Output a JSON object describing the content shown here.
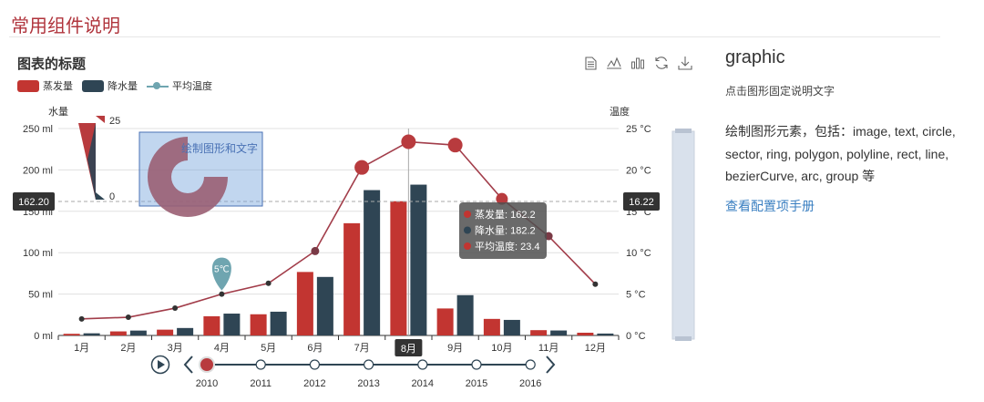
{
  "page": {
    "title": "常用组件说明"
  },
  "chart": {
    "title": "图表的标题",
    "legend": [
      {
        "name": "蒸发量",
        "color": "#c23531",
        "kind": "bar"
      },
      {
        "name": "降水量",
        "color": "#2f4554",
        "kind": "bar"
      },
      {
        "name": "平均温度",
        "color": "#61a0a8",
        "kind": "line"
      }
    ],
    "toolbox": [
      {
        "name": "data-view-icon"
      },
      {
        "name": "line-chart-icon"
      },
      {
        "name": "bar-chart-icon"
      },
      {
        "name": "restore-icon"
      },
      {
        "name": "download-icon"
      }
    ],
    "y_left_name": "水量",
    "y_right_name": "温度",
    "visualmap": {
      "max_label": "25",
      "min_label": "0"
    },
    "graphic_text": "绘制图形和文字",
    "axis_pointer": {
      "left_label": "162.20",
      "right_label": "16.22",
      "x_label": "8月"
    },
    "tooltip": [
      {
        "label": "蒸发量: 162.2",
        "color": "#c23531"
      },
      {
        "label": "降水量: 182.2",
        "color": "#2f4554"
      },
      {
        "label": "平均温度: 23.4",
        "color": "#c23531"
      }
    ],
    "markpoint_label": "5℃"
  },
  "chart_data": {
    "type": "bar",
    "categories": [
      "1月",
      "2月",
      "3月",
      "4月",
      "5月",
      "6月",
      "7月",
      "8月",
      "9月",
      "10月",
      "11月",
      "12月"
    ],
    "series": [
      {
        "name": "蒸发量",
        "type": "bar",
        "color": "#c23531",
        "values": [
          2.0,
          4.9,
          7.0,
          23.2,
          25.6,
          76.7,
          135.6,
          162.2,
          32.6,
          20.0,
          6.4,
          3.3
        ]
      },
      {
        "name": "降水量",
        "type": "bar",
        "color": "#2f4554",
        "values": [
          2.6,
          5.9,
          9.0,
          26.4,
          28.7,
          70.7,
          175.6,
          182.2,
          48.7,
          18.8,
          6.0,
          2.3
        ]
      },
      {
        "name": "平均温度",
        "type": "line",
        "color": "#a23d4a",
        "values": [
          2.0,
          2.2,
          3.3,
          5.0,
          6.3,
          10.2,
          20.3,
          23.4,
          23.0,
          16.5,
          12.0,
          6.2
        ]
      }
    ],
    "y_left": {
      "min": 0,
      "max": 250,
      "ticks": [
        "0 ml",
        "50 ml",
        "100 ml",
        "150 ml",
        "200 ml",
        "250 ml"
      ],
      "label": "水量"
    },
    "y_right": {
      "min": 0,
      "max": 25,
      "ticks": [
        "0 °C",
        "5 °C",
        "10 °C",
        "15 °C",
        "20 °C",
        "25 °C"
      ],
      "label": "温度"
    },
    "timeline": [
      "2010",
      "2011",
      "2012",
      "2013",
      "2014",
      "2015",
      "2016"
    ],
    "timeline_current": 0,
    "highlight_category": 7
  },
  "side": {
    "title": "graphic",
    "subtitle": "点击图形固定说明文字",
    "body": "绘制图形元素，包括：image, text, circle, sector, ring, polygon, polyline, rect, line, bezierCurve, arc, group 等",
    "link": "查看配置项手册"
  }
}
